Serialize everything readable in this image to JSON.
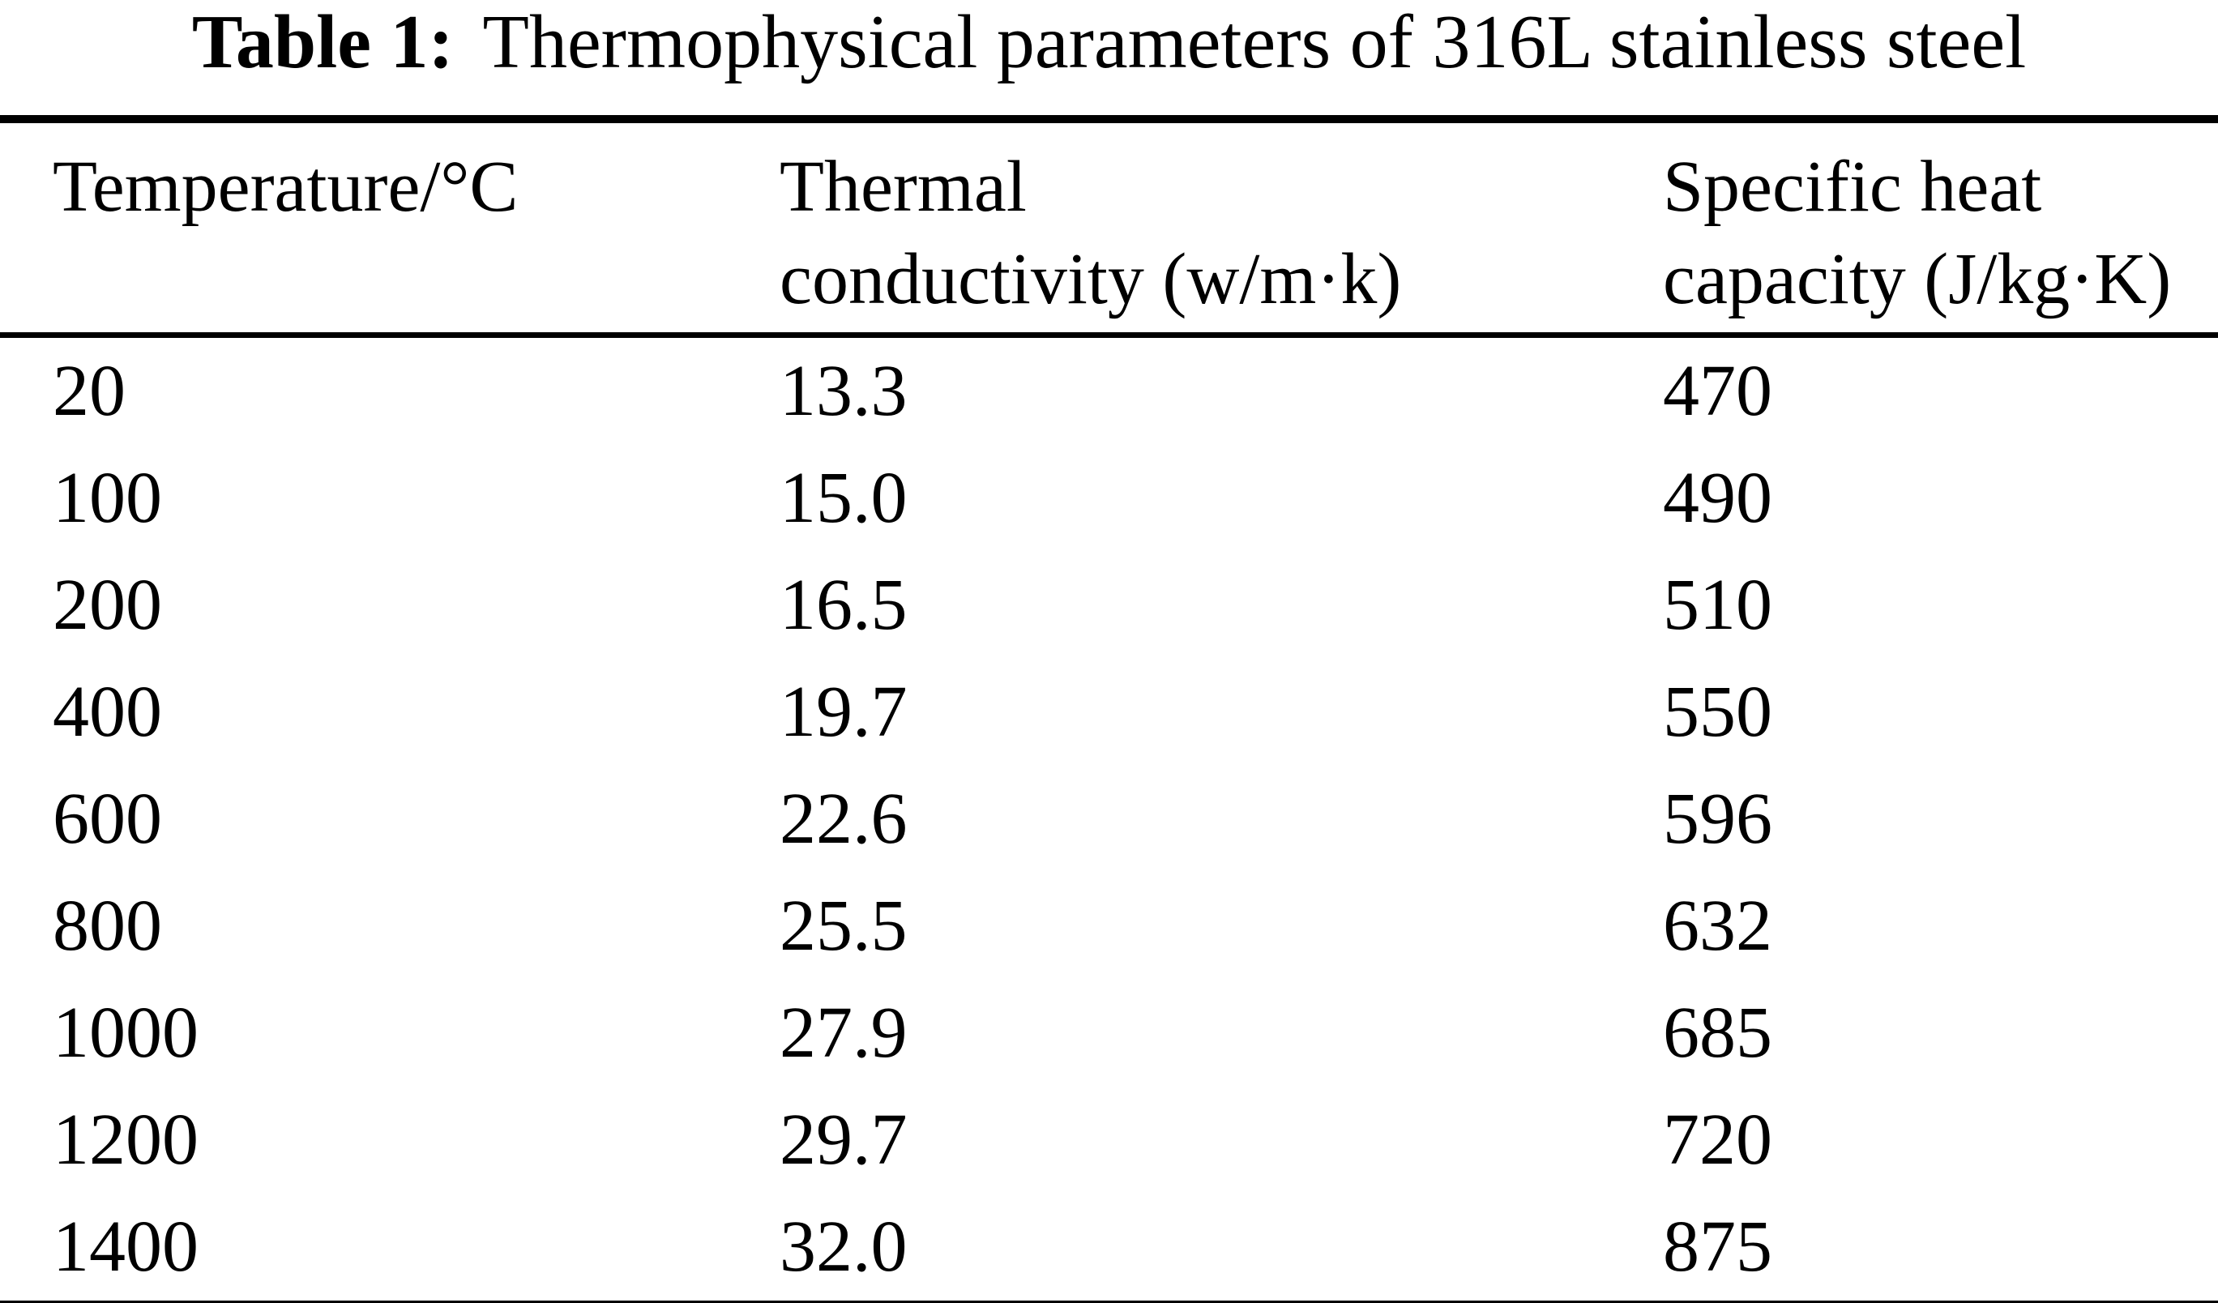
{
  "page": {
    "title_label": "Table 1:",
    "title_text": "Thermophysical parameters of 316L stainless steel"
  },
  "table": {
    "header": [
      {
        "line1": "Temperature/°C",
        "line2": ""
      },
      {
        "line1": "Thermal",
        "line2": "conductivity (w/m·k)"
      },
      {
        "line1": "Specific heat",
        "line2": "capacity (J/kg·K)"
      }
    ],
    "rows": [
      [
        "20",
        "13.3",
        "470"
      ],
      [
        "100",
        "15.0",
        "490"
      ],
      [
        "200",
        "16.5",
        "510"
      ],
      [
        "400",
        "19.7",
        "550"
      ],
      [
        "600",
        "22.6",
        "596"
      ],
      [
        "800",
        "25.5",
        "632"
      ],
      [
        "1000",
        "27.9",
        "685"
      ],
      [
        "1200",
        "29.7",
        "720"
      ],
      [
        "1400",
        "32.0",
        "875"
      ]
    ]
  },
  "colors": {
    "text": "#000000",
    "background": "#ffffff",
    "rule": "#000000"
  }
}
